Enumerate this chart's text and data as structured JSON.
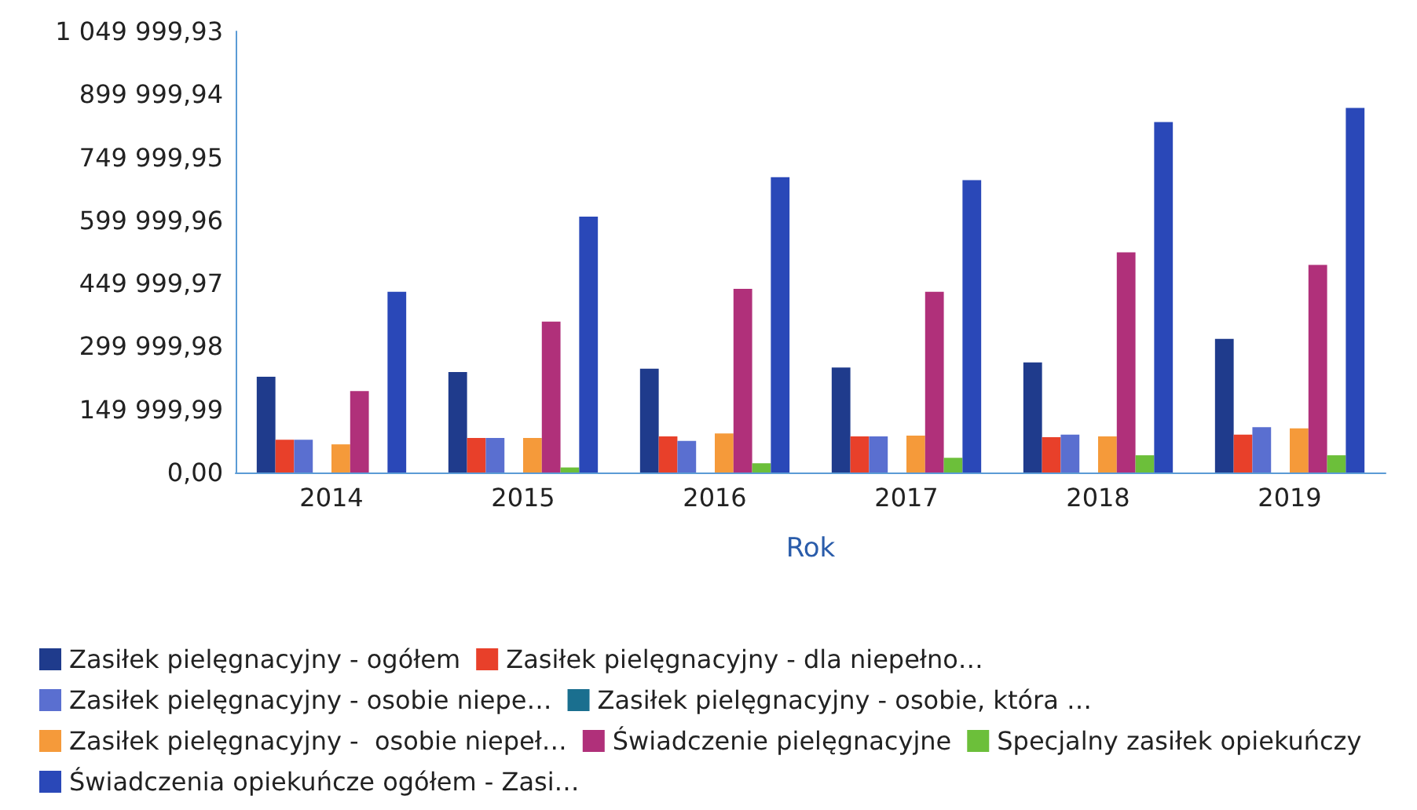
{
  "chart_data": {
    "type": "bar",
    "xlabel": "Rok",
    "categories": [
      "2014",
      "2015",
      "2016",
      "2017",
      "2018",
      "2019"
    ],
    "ylim": [
      0,
      1049999.93
    ],
    "yticks": [
      {
        "value": 0,
        "label": "0,00"
      },
      {
        "value": 149999.99,
        "label": "149 999,99"
      },
      {
        "value": 299999.98,
        "label": "299 999,98"
      },
      {
        "value": 449999.97,
        "label": "449 999,97"
      },
      {
        "value": 599999.96,
        "label": "599 999,96"
      },
      {
        "value": 749999.95,
        "label": "749 999,95"
      },
      {
        "value": 899999.94,
        "label": "899 999,94"
      },
      {
        "value": 1049999.93,
        "label": "1 049 999,93"
      }
    ],
    "grid": false,
    "legend": "bottom",
    "series": [
      {
        "name": "Zasiłek pielęgnacyjny - ogółem",
        "color": "#1f3b8c",
        "values": [
          228000,
          239000,
          247000,
          250000,
          262000,
          318000
        ]
      },
      {
        "name": "Zasiłek pielęgnacyjny - dla niepełno…",
        "color": "#e8402a",
        "values": [
          78000,
          82000,
          86000,
          86000,
          84000,
          90000
        ]
      },
      {
        "name": "Zasiłek pielęgnacyjny - osobie niepe…",
        "color": "#5a6fd0",
        "values": [
          78000,
          82000,
          75000,
          86000,
          90000,
          108000
        ]
      },
      {
        "name": "Zasiłek pielęgnacyjny - osobie, która …",
        "color": "#1a6f8f",
        "values": [
          0,
          0,
          0,
          0,
          0,
          0
        ]
      },
      {
        "name": "Zasiłek pielęgnacyjny -  osobie niepeł…",
        "color": "#f59a3a",
        "values": [
          67000,
          82000,
          93000,
          88000,
          86000,
          105000
        ]
      },
      {
        "name": "Świadczenie pielęgnacyjne",
        "color": "#b0307a",
        "values": [
          194000,
          359000,
          437000,
          430000,
          524000,
          494000
        ]
      },
      {
        "name": "Specjalny zasiłek opiekuńczy",
        "color": "#6cbf3a",
        "values": [
          0,
          12000,
          22000,
          35000,
          41000,
          41000
        ]
      },
      {
        "name": "Świadczenia opiekuńcze ogółem - Zasi…",
        "color": "#2a48b8",
        "values": [
          430000,
          609000,
          703000,
          696000,
          834000,
          868000
        ]
      }
    ]
  }
}
